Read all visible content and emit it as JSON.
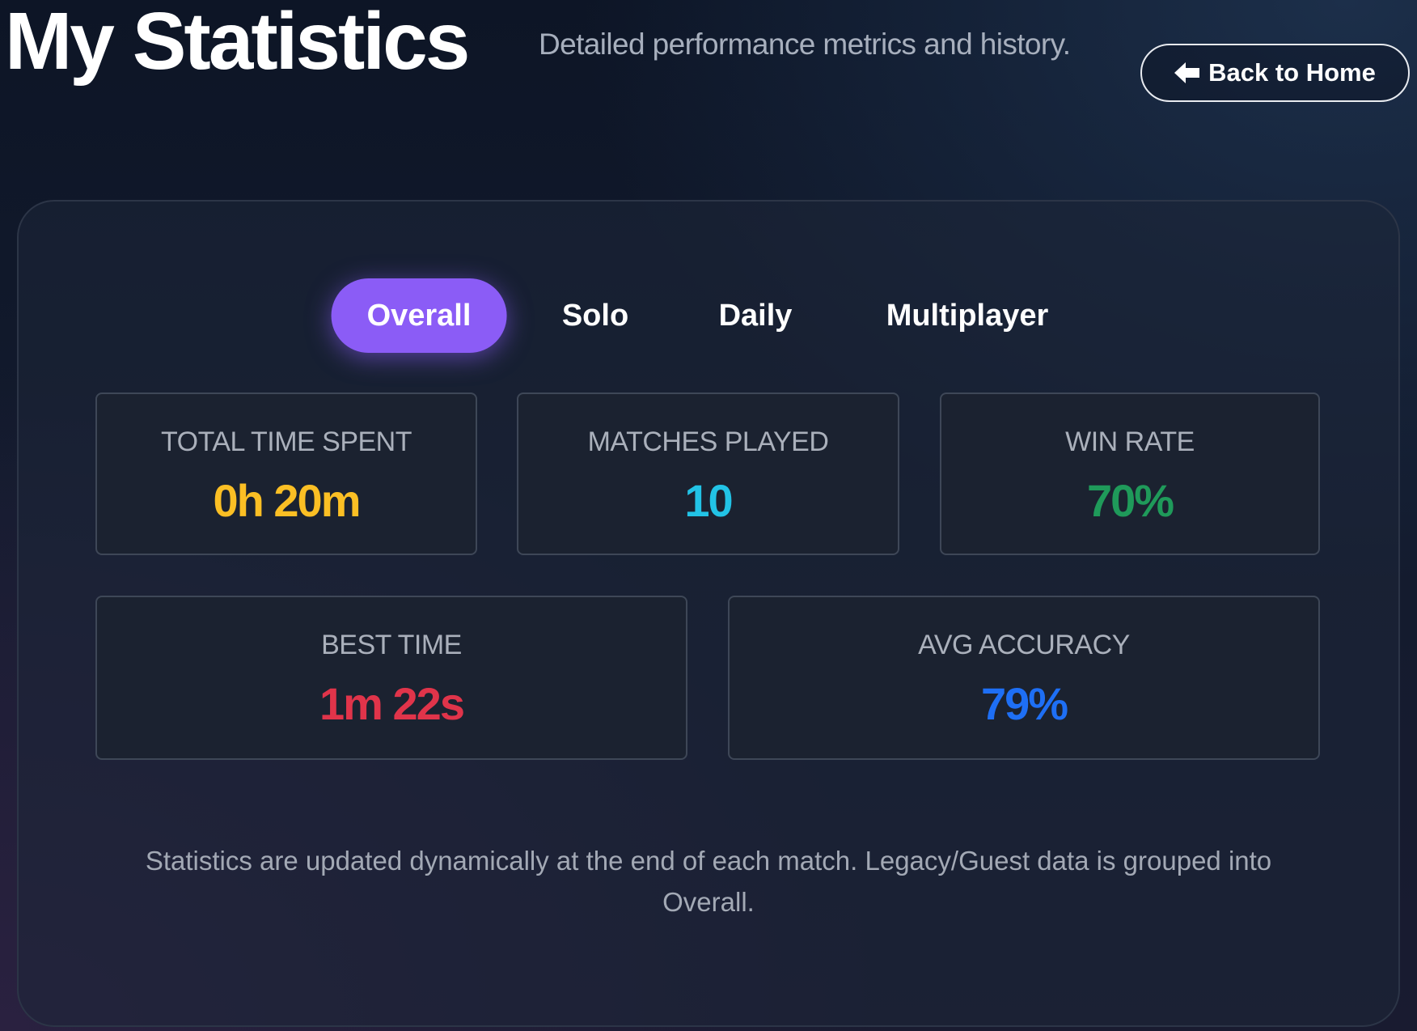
{
  "header": {
    "title": "My Statistics",
    "subtitle": "Detailed performance metrics and history.",
    "back_button": "Back to Home"
  },
  "tabs": {
    "items": [
      "Overall",
      "Solo",
      "Daily",
      "Multiplayer"
    ],
    "active": 0
  },
  "stats": [
    {
      "label": "TOTAL TIME SPENT",
      "value": "0h 20m"
    },
    {
      "label": "MATCHES PLAYED",
      "value": "10"
    },
    {
      "label": "WIN RATE",
      "value": "70%"
    },
    {
      "label": "BEST TIME",
      "value": "1m 22s"
    },
    {
      "label": "AVG ACCURACY",
      "value": "79%"
    }
  ],
  "footer": "Statistics are updated dynamically at the end of each match. Legacy/Guest data is grouped into Overall."
}
